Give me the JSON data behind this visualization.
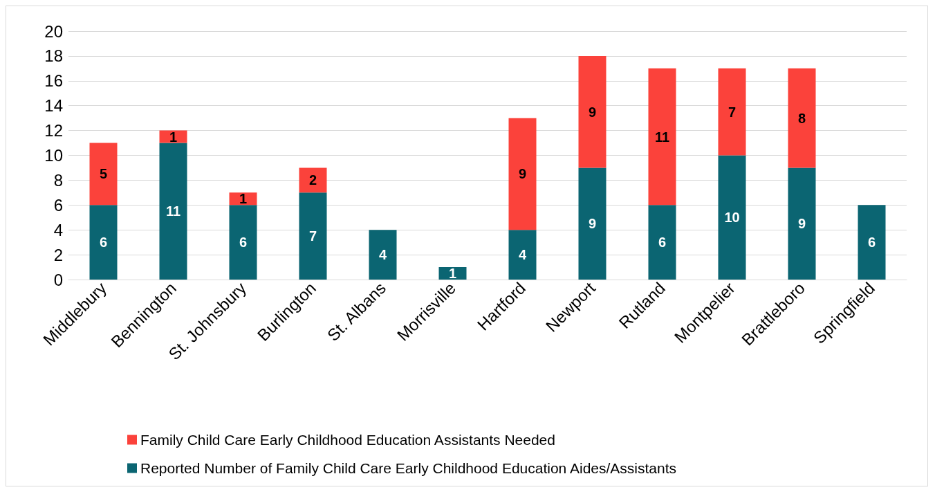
{
  "chart_data": {
    "type": "bar",
    "stacked": true,
    "categories": [
      "Middlebury",
      "Bennington",
      "St. Johnsbury",
      "Burlington",
      "St. Albans",
      "Morrisville",
      "Hartford",
      "Newport",
      "Rutland",
      "Montpelier",
      "Brattleboro",
      "Springfield"
    ],
    "series": [
      {
        "name": "Reported Number of Family Child Care Early Childhood Education Aides/Assistants",
        "color": "#0b6572",
        "values": [
          6,
          11,
          6,
          7,
          4,
          1,
          4,
          9,
          6,
          10,
          9,
          6
        ]
      },
      {
        "name": "Family Child Care Early Childhood Education Assistants Needed",
        "color": "#fb423b",
        "values": [
          5,
          1,
          1,
          2,
          null,
          null,
          9,
          9,
          11,
          7,
          8,
          null
        ]
      }
    ],
    "ylim": [
      0,
      20
    ],
    "yticks": [
      0,
      2,
      4,
      6,
      8,
      10,
      12,
      14,
      16,
      18,
      20
    ],
    "grid": "y",
    "legend": "bottom",
    "data_labels": true
  }
}
